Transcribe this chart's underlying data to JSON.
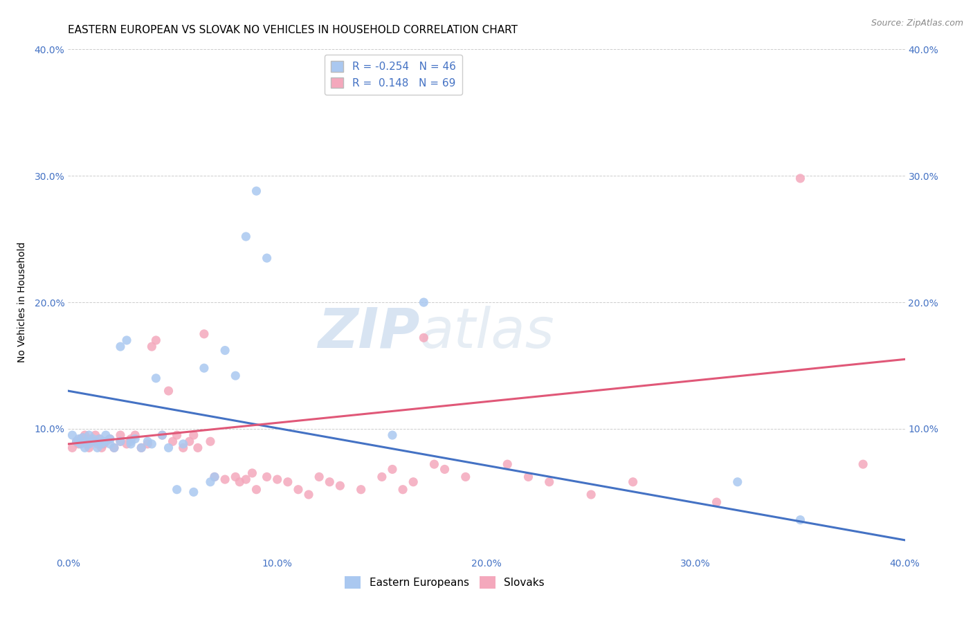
{
  "title": "EASTERN EUROPEAN VS SLOVAK NO VEHICLES IN HOUSEHOLD CORRELATION CHART",
  "source": "Source: ZipAtlas.com",
  "ylabel": "No Vehicles in Household",
  "xlim": [
    0.0,
    0.4
  ],
  "ylim": [
    0.0,
    0.4
  ],
  "xtick_labels": [
    "0.0%",
    "",
    "10.0%",
    "",
    "20.0%",
    "",
    "30.0%",
    "",
    "40.0%"
  ],
  "xtick_vals": [
    0.0,
    0.05,
    0.1,
    0.15,
    0.2,
    0.25,
    0.3,
    0.35,
    0.4
  ],
  "ytick_labels": [
    "10.0%",
    "20.0%",
    "30.0%",
    "40.0%"
  ],
  "ytick_vals": [
    0.1,
    0.2,
    0.3,
    0.4
  ],
  "grid_color": "#cccccc",
  "background_color": "#ffffff",
  "blue_color": "#aac8f0",
  "pink_color": "#f4a8bc",
  "blue_line_color": "#4472c4",
  "pink_line_color": "#e05878",
  "R_blue": -0.254,
  "N_blue": 46,
  "R_pink": 0.148,
  "N_pink": 69,
  "blue_line_x0": 0.0,
  "blue_line_y0": 0.13,
  "blue_line_x1": 0.4,
  "blue_line_y1": 0.012,
  "pink_line_x0": 0.0,
  "pink_line_y0": 0.088,
  "pink_line_x1": 0.4,
  "pink_line_y1": 0.155,
  "blue_scatter_x": [
    0.002,
    0.004,
    0.005,
    0.006,
    0.007,
    0.008,
    0.009,
    0.01,
    0.01,
    0.012,
    0.013,
    0.014,
    0.015,
    0.016,
    0.017,
    0.018,
    0.02,
    0.02,
    0.022,
    0.025,
    0.025,
    0.028,
    0.03,
    0.03,
    0.032,
    0.035,
    0.038,
    0.04,
    0.042,
    0.045,
    0.048,
    0.052,
    0.055,
    0.06,
    0.065,
    0.068,
    0.07,
    0.075,
    0.08,
    0.085,
    0.09,
    0.095,
    0.155,
    0.17,
    0.32,
    0.35
  ],
  "blue_scatter_y": [
    0.095,
    0.09,
    0.092,
    0.088,
    0.093,
    0.085,
    0.09,
    0.095,
    0.088,
    0.092,
    0.09,
    0.085,
    0.092,
    0.088,
    0.09,
    0.095,
    0.088,
    0.092,
    0.085,
    0.09,
    0.165,
    0.17,
    0.09,
    0.088,
    0.092,
    0.085,
    0.09,
    0.088,
    0.14,
    0.095,
    0.085,
    0.052,
    0.088,
    0.05,
    0.148,
    0.058,
    0.062,
    0.162,
    0.142,
    0.252,
    0.288,
    0.235,
    0.095,
    0.2,
    0.058,
    0.028
  ],
  "pink_scatter_x": [
    0.002,
    0.004,
    0.005,
    0.006,
    0.007,
    0.008,
    0.009,
    0.01,
    0.01,
    0.012,
    0.013,
    0.014,
    0.015,
    0.016,
    0.017,
    0.018,
    0.02,
    0.022,
    0.025,
    0.025,
    0.028,
    0.03,
    0.032,
    0.035,
    0.038,
    0.04,
    0.042,
    0.045,
    0.048,
    0.05,
    0.052,
    0.055,
    0.058,
    0.06,
    0.062,
    0.065,
    0.068,
    0.07,
    0.075,
    0.08,
    0.082,
    0.085,
    0.088,
    0.09,
    0.095,
    0.1,
    0.105,
    0.11,
    0.115,
    0.12,
    0.125,
    0.13,
    0.14,
    0.15,
    0.155,
    0.16,
    0.165,
    0.17,
    0.175,
    0.18,
    0.19,
    0.21,
    0.22,
    0.23,
    0.25,
    0.27,
    0.31,
    0.35,
    0.38
  ],
  "pink_scatter_y": [
    0.085,
    0.09,
    0.088,
    0.092,
    0.093,
    0.095,
    0.088,
    0.092,
    0.085,
    0.09,
    0.095,
    0.088,
    0.092,
    0.085,
    0.088,
    0.09,
    0.092,
    0.085,
    0.09,
    0.095,
    0.088,
    0.092,
    0.095,
    0.085,
    0.088,
    0.165,
    0.17,
    0.095,
    0.13,
    0.09,
    0.095,
    0.085,
    0.09,
    0.095,
    0.085,
    0.175,
    0.09,
    0.062,
    0.06,
    0.062,
    0.058,
    0.06,
    0.065,
    0.052,
    0.062,
    0.06,
    0.058,
    0.052,
    0.048,
    0.062,
    0.058,
    0.055,
    0.052,
    0.062,
    0.068,
    0.052,
    0.058,
    0.172,
    0.072,
    0.068,
    0.062,
    0.072,
    0.062,
    0.058,
    0.048,
    0.058,
    0.042,
    0.298,
    0.072
  ],
  "watermark_zip": "ZIP",
  "watermark_atlas": "atlas",
  "title_fontsize": 11,
  "tick_fontsize": 10,
  "label_fontsize": 10
}
